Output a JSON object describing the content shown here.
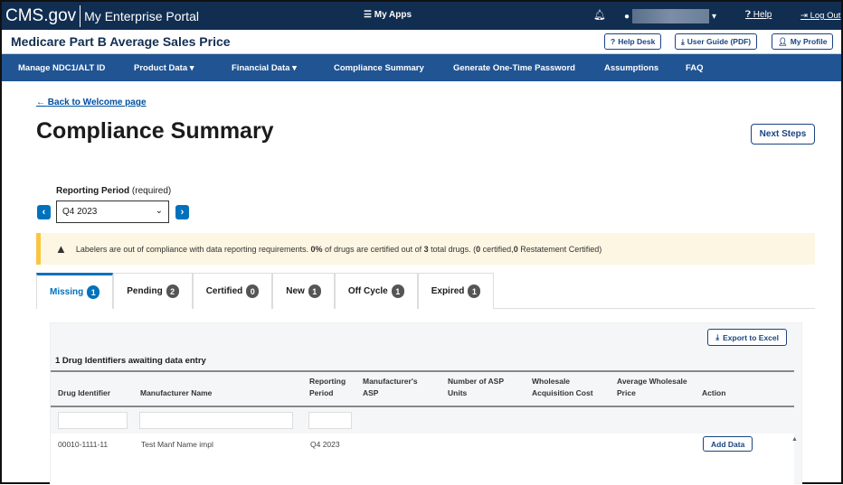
{
  "top": {
    "logo": "CMS.gov",
    "portal": "My Enterprise Portal",
    "my_apps": "My Apps",
    "help": "Help",
    "logout": "Log Out"
  },
  "header": {
    "title": "Medicare Part B Average Sales Price",
    "help_desk": "Help Desk",
    "user_guide": "User Guide (PDF)",
    "my_profile": "My Profile"
  },
  "nav": [
    "Manage NDC1/ALT ID",
    "Product Data",
    "Financial Data",
    "Compliance Summary",
    "Generate One-Time Password",
    "Assumptions",
    "FAQ"
  ],
  "page": {
    "back": "Back to Welcome page",
    "title": "Compliance Summary",
    "next_steps": "Next Steps"
  },
  "period": {
    "label": "Reporting Period",
    "required": "(required)",
    "value": "Q4 2023"
  },
  "alert": {
    "t1": "Labelers are out of compliance with data reporting requirements. ",
    "pct": "0%",
    "t2": " of drugs are certified out of ",
    "total": "3",
    "t3": " total drugs. (",
    "cert": "0",
    "t4": " certified,",
    "restate": "0",
    "t5": " Restatement Certified)"
  },
  "tabs": [
    {
      "label": "Missing",
      "count": "1"
    },
    {
      "label": "Pending",
      "count": "2"
    },
    {
      "label": "Certified",
      "count": "0"
    },
    {
      "label": "New",
      "count": "1"
    },
    {
      "label": "Off Cycle",
      "count": "1"
    },
    {
      "label": "Expired",
      "count": "1"
    }
  ],
  "table": {
    "export": "Export to Excel",
    "caption": "1 Drug Identifiers awaiting data entry",
    "columns": [
      "Drug Identifier",
      "Manufacturer Name",
      "Reporting Period",
      "Manufacturer's ASP",
      "Number of ASP Units",
      "Wholesale Acquisition Cost",
      "Average Wholesale Price",
      "Action"
    ],
    "rows": [
      {
        "drug_id": "00010-1111-11",
        "manufacturer": "Test Manf Name impl",
        "period": "Q4 2023",
        "action": "Add Data"
      }
    ]
  }
}
